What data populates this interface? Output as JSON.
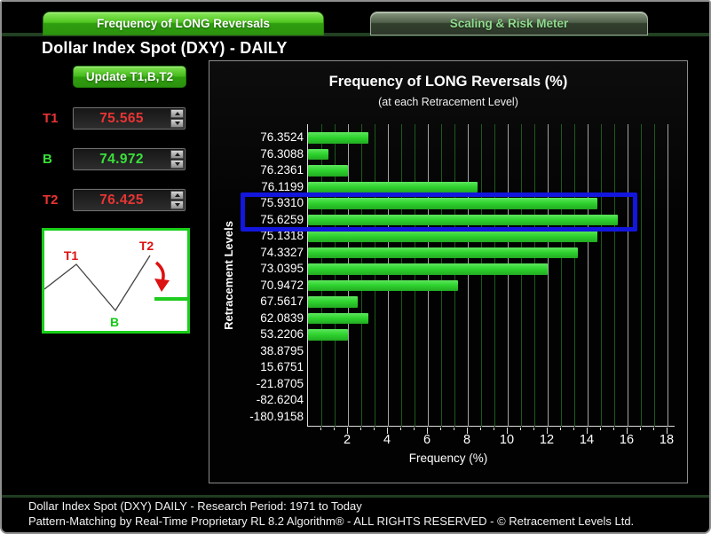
{
  "window": {
    "title": "Dollar Index Spot (DXY) - DAILY"
  },
  "tabs": [
    {
      "label": "Frequency of LONG Reversals",
      "active": true
    },
    {
      "label": "Scaling & Risk Meter",
      "active": false
    }
  ],
  "controls": {
    "update_button_label": "Update T1,B,T2",
    "fields": [
      {
        "label": "T1",
        "value": "75.565",
        "color": "#e83434"
      },
      {
        "label": "B",
        "value": "74.972",
        "color": "#3ae03a"
      },
      {
        "label": "T2",
        "value": "76.425",
        "color": "#e83434"
      }
    ]
  },
  "pattern_diagram": {
    "labels": {
      "t1": "T1",
      "b": "B",
      "t2": "T2"
    },
    "peak_label_color": "#dd1111",
    "bottom_label_color": "#15c915",
    "arrow_color": "#dd1111",
    "target_line_color": "#1ecb1e"
  },
  "chart_data": {
    "type": "bar",
    "orientation": "horizontal",
    "title": "Frequency of LONG Reversals (%)",
    "subtitle": "(at each Retracement Level)",
    "xlabel": "Frequency (%)",
    "ylabel": "Retracement Levels",
    "categories": [
      "76.3524",
      "76.3088",
      "76.2361",
      "76.1199",
      "75.9310",
      "75.6259",
      "75.1318",
      "74.3327",
      "73.0395",
      "70.9472",
      "67.5617",
      "62.0839",
      "53.2206",
      "38.8795",
      "15.6751",
      "-21.8705",
      "-82.6204",
      "-180.9158"
    ],
    "values": [
      3.0,
      1.0,
      2.0,
      8.5,
      14.5,
      15.5,
      14.5,
      13.5,
      12.0,
      7.5,
      2.5,
      3.0,
      2.0,
      0,
      0,
      0,
      0,
      0
    ],
    "xlim": [
      0,
      18.4
    ],
    "xticks": [
      2,
      4,
      6,
      8,
      10,
      12,
      14,
      16,
      18
    ],
    "grid": {
      "major_step": 2,
      "minor_substeps": 3,
      "major_color": "#a5a5a5",
      "minor_color": "#1d5a1d"
    },
    "bar_color": "#2fd42f",
    "highlight": {
      "categories": [
        "75.9310",
        "75.6259"
      ],
      "color": "#1316dd"
    }
  },
  "footer": {
    "line1": "Dollar Index Spot (DXY) DAILY - Research Period: 1971 to Today",
    "line2": "Pattern-Matching by Real-Time Proprietary RL 8.2 Algorithm®  -  ALL RIGHTS RESERVED - © Retracement Levels Ltd."
  }
}
